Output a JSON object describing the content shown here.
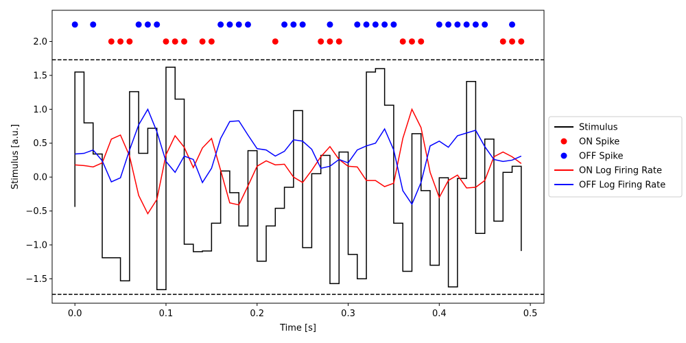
{
  "chart_data": {
    "type": "line",
    "title": "",
    "xlabel": "Time [s]",
    "ylabel": "Stimulus [a.u.]",
    "xlim": [
      -0.025,
      0.515
    ],
    "ylim": [
      -1.86,
      2.46
    ],
    "xticks": [
      0.0,
      0.1,
      0.2,
      0.3,
      0.4,
      0.5
    ],
    "xtick_labels": [
      "0.0",
      "0.1",
      "0.2",
      "0.3",
      "0.4",
      "0.5"
    ],
    "yticks": [
      -1.5,
      -1.0,
      -0.5,
      0.0,
      0.5,
      1.0,
      1.5,
      2.0
    ],
    "ytick_labels": [
      "−1.5",
      "−1.0",
      "−0.5",
      "0.0",
      "0.5",
      "1.0",
      "1.5",
      "2.0"
    ],
    "grid": false,
    "legend_position": "outside-right",
    "threshold_lines": [
      1.73,
      -1.73
    ],
    "threshold_color": "#000000",
    "stimulus": {
      "name": "Stimulus",
      "color": "#000000",
      "style": "step-post",
      "x": [
        0.0,
        0.01,
        0.02,
        0.03,
        0.04,
        0.05,
        0.06,
        0.07,
        0.08,
        0.09,
        0.1,
        0.11,
        0.12,
        0.13,
        0.14,
        0.15,
        0.16,
        0.17,
        0.18,
        0.19,
        0.2,
        0.21,
        0.22,
        0.23,
        0.24,
        0.25,
        0.26,
        0.27,
        0.28,
        0.29,
        0.3,
        0.31,
        0.32,
        0.33,
        0.34,
        0.35,
        0.36,
        0.37,
        0.38,
        0.39,
        0.4,
        0.41,
        0.42,
        0.43,
        0.44,
        0.45,
        0.46,
        0.47,
        0.48,
        0.49
      ],
      "y": [
        1.55,
        0.8,
        0.34,
        -1.19,
        -1.19,
        -1.53,
        1.26,
        0.35,
        0.72,
        -1.66,
        1.62,
        1.15,
        -0.99,
        -1.1,
        -1.09,
        -0.68,
        0.09,
        -0.23,
        -0.72,
        0.39,
        -1.24,
        -0.72,
        -0.46,
        -0.15,
        0.98,
        -1.04,
        0.05,
        0.32,
        -1.57,
        0.37,
        -1.14,
        -1.5,
        1.55,
        1.6,
        1.06,
        -0.68,
        -1.39,
        0.64,
        -0.2,
        -1.3,
        -0.01,
        -1.62,
        -0.02,
        1.41,
        -0.83,
        0.56,
        -0.65,
        0.07,
        0.16,
        -1.09
      ],
      "start_y": -0.44,
      "end_x": 0.49
    },
    "scatter_series": [
      {
        "name": "ON Spike",
        "color": "#ff0000",
        "y_level": 2.0,
        "x": [
          0.04,
          0.05,
          0.06,
          0.1,
          0.11,
          0.12,
          0.14,
          0.15,
          0.22,
          0.27,
          0.28,
          0.29,
          0.36,
          0.37,
          0.38,
          0.47,
          0.48,
          0.49
        ]
      },
      {
        "name": "OFF Spike",
        "color": "#0000ff",
        "y_level": 2.25,
        "x": [
          0.0,
          0.02,
          0.07,
          0.08,
          0.09,
          0.16,
          0.17,
          0.18,
          0.19,
          0.23,
          0.24,
          0.25,
          0.28,
          0.31,
          0.32,
          0.33,
          0.34,
          0.35,
          0.4,
          0.41,
          0.42,
          0.43,
          0.44,
          0.45,
          0.48
        ]
      }
    ],
    "line_series": [
      {
        "name": "ON Log Firing Rate",
        "color": "#ff0000",
        "x": [
          0.0,
          0.01,
          0.02,
          0.03,
          0.04,
          0.05,
          0.06,
          0.07,
          0.08,
          0.09,
          0.1,
          0.11,
          0.12,
          0.13,
          0.14,
          0.15,
          0.16,
          0.17,
          0.18,
          0.19,
          0.2,
          0.21,
          0.22,
          0.23,
          0.24,
          0.25,
          0.26,
          0.27,
          0.28,
          0.29,
          0.3,
          0.31,
          0.32,
          0.33,
          0.34,
          0.35,
          0.36,
          0.37,
          0.38,
          0.39,
          0.4,
          0.41,
          0.42,
          0.43,
          0.44,
          0.45,
          0.46,
          0.47,
          0.48,
          0.49
        ],
        "y": [
          0.18,
          0.17,
          0.15,
          0.21,
          0.56,
          0.62,
          0.31,
          -0.27,
          -0.54,
          -0.33,
          0.33,
          0.61,
          0.44,
          0.14,
          0.43,
          0.57,
          0.1,
          -0.38,
          -0.41,
          -0.13,
          0.16,
          0.24,
          0.18,
          0.19,
          0.0,
          -0.08,
          0.1,
          0.3,
          0.45,
          0.26,
          0.16,
          0.15,
          -0.05,
          -0.05,
          -0.14,
          -0.09,
          0.57,
          1.0,
          0.73,
          0.07,
          -0.3,
          -0.05,
          0.03,
          -0.16,
          -0.15,
          -0.05,
          0.3,
          0.37,
          0.3,
          0.2
        ]
      },
      {
        "name": "OFF Log Firing Rate",
        "color": "#0000ff",
        "x": [
          0.0,
          0.01,
          0.02,
          0.03,
          0.04,
          0.05,
          0.06,
          0.07,
          0.08,
          0.09,
          0.1,
          0.11,
          0.12,
          0.13,
          0.14,
          0.15,
          0.16,
          0.17,
          0.18,
          0.19,
          0.2,
          0.21,
          0.22,
          0.23,
          0.24,
          0.25,
          0.26,
          0.27,
          0.28,
          0.29,
          0.3,
          0.31,
          0.32,
          0.33,
          0.34,
          0.35,
          0.36,
          0.37,
          0.38,
          0.39,
          0.4,
          0.41,
          0.42,
          0.43,
          0.44,
          0.45,
          0.46,
          0.47,
          0.48,
          0.49
        ],
        "y": [
          0.34,
          0.35,
          0.4,
          0.24,
          -0.07,
          -0.01,
          0.4,
          0.77,
          1.0,
          0.67,
          0.23,
          0.07,
          0.31,
          0.26,
          -0.08,
          0.13,
          0.57,
          0.82,
          0.83,
          0.62,
          0.42,
          0.4,
          0.31,
          0.38,
          0.55,
          0.53,
          0.41,
          0.13,
          0.16,
          0.26,
          0.21,
          0.4,
          0.46,
          0.5,
          0.71,
          0.4,
          -0.2,
          -0.4,
          -0.08,
          0.46,
          0.53,
          0.44,
          0.61,
          0.65,
          0.69,
          0.45,
          0.26,
          0.23,
          0.25,
          0.31
        ]
      }
    ],
    "legend": [
      {
        "label": "Stimulus",
        "marker": "line",
        "color": "#000000"
      },
      {
        "label": "ON Spike",
        "marker": "dot",
        "color": "#ff0000"
      },
      {
        "label": "OFF Spike",
        "marker": "dot",
        "color": "#0000ff"
      },
      {
        "label": "ON Log Firing Rate",
        "marker": "line",
        "color": "#ff0000"
      },
      {
        "label": "OFF Log Firing Rate",
        "marker": "line",
        "color": "#0000ff"
      }
    ]
  }
}
